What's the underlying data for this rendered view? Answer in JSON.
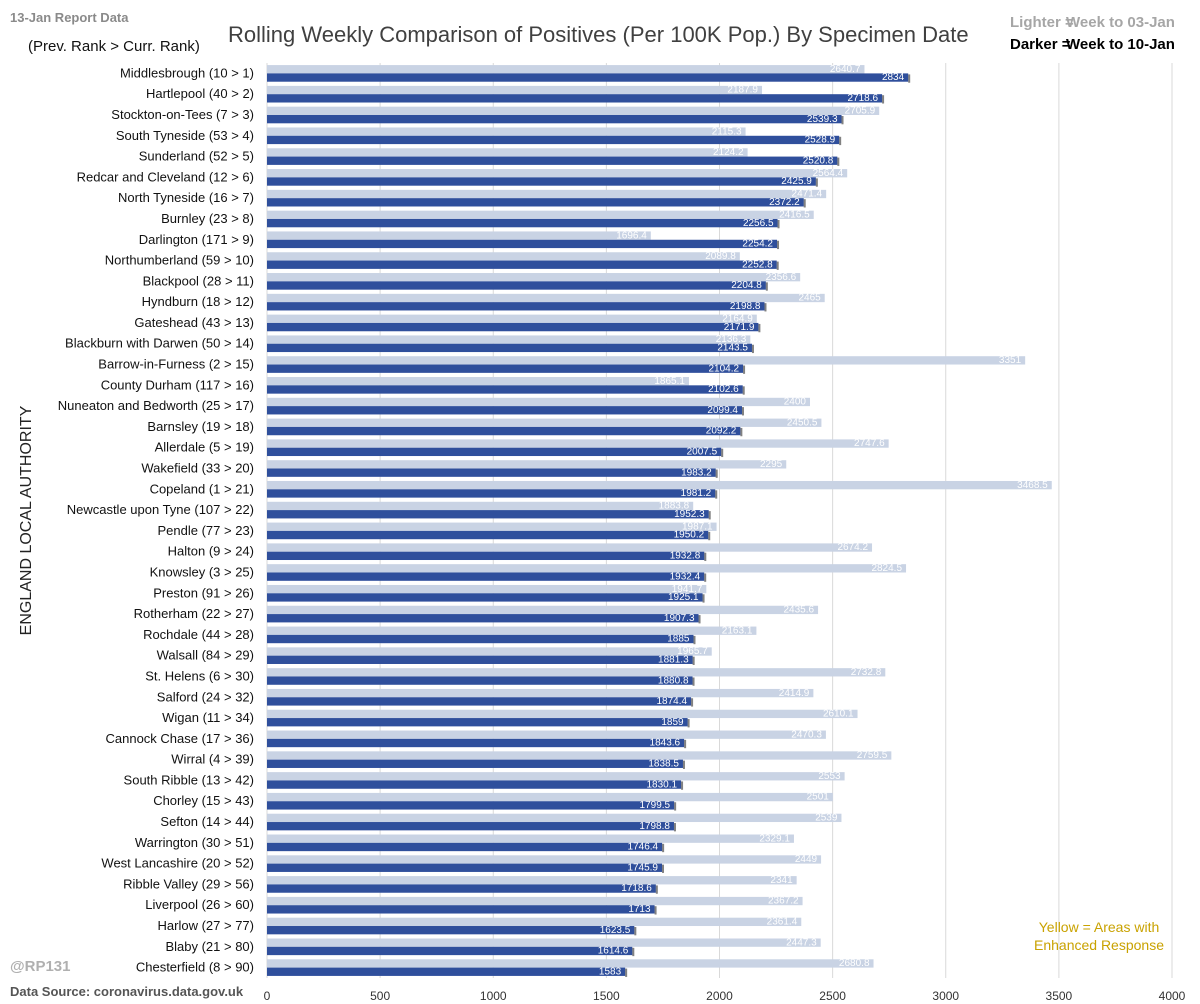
{
  "header": {
    "report_label": "13-Jan Report Data",
    "rank_note": "(Prev. Rank > Curr. Rank)",
    "title": "Rolling Weekly Comparison of Positives  (Per 100K Pop.) By Specimen Date",
    "legend_light_key": "Lighter =",
    "legend_light_value": "Week to 03-Jan",
    "legend_dark_key": "Darker =",
    "legend_dark_value": "Week to 10-Jan"
  },
  "footer": {
    "handle": "@RP131",
    "source": "Data Source: coronavirus.data.gov.uk",
    "yellow_note_line1": "Yellow = Areas with",
    "yellow_note_line2": "Enhanced Response"
  },
  "colors": {
    "prev_bar": "#c9d3e4",
    "curr_bar": "#2f4f9c",
    "grid": "#d9d9d9",
    "category_text": "#111111",
    "axis_text": "#333333"
  },
  "chart_data": {
    "type": "bar",
    "orientation": "horizontal",
    "ylabel": "ENGLAND LOCAL AUTHORITY",
    "xlabel": "",
    "xlim": [
      0,
      4000
    ],
    "x_ticks": [
      0,
      500,
      1000,
      1500,
      2000,
      2500,
      3000,
      3500,
      4000
    ],
    "grid": true,
    "categories": [
      "Middlesbrough (10 > 1)",
      "Hartlepool (40 > 2)",
      "Stockton-on-Tees (7 > 3)",
      "South Tyneside (53 > 4)",
      "Sunderland (52 > 5)",
      "Redcar and Cleveland (12 > 6)",
      "North Tyneside (16 > 7)",
      "Burnley (23 > 8)",
      "Darlington (171 > 9)",
      "Northumberland (59 > 10)",
      "Blackpool (28 > 11)",
      "Hyndburn (18 > 12)",
      "Gateshead (43 > 13)",
      "Blackburn with Darwen (50 > 14)",
      "Barrow-in-Furness (2 > 15)",
      "County Durham (117 > 16)",
      "Nuneaton and Bedworth (25 > 17)",
      "Barnsley (19 > 18)",
      "Allerdale (5 > 19)",
      "Wakefield (33 > 20)",
      "Copeland (1 > 21)",
      "Newcastle upon Tyne (107 > 22)",
      "Pendle (77 > 23)",
      "Halton (9 > 24)",
      "Knowsley (3 > 25)",
      "Preston (91 > 26)",
      "Rotherham (22 > 27)",
      "Rochdale (44 > 28)",
      "Walsall (84 > 29)",
      "St. Helens (6 > 30)",
      "Salford (24 > 32)",
      "Wigan (11 > 34)",
      "Cannock Chase (17 > 36)",
      "Wirral (4 > 39)",
      "South Ribble (13 > 42)",
      "Chorley (15 > 43)",
      "Sefton (14 > 44)",
      "Warrington (30 > 51)",
      "West Lancashire (20 > 52)",
      "Ribble Valley (29 > 56)",
      "Liverpool (26 > 60)",
      "Harlow (27 > 77)",
      "Blaby (21 > 80)",
      "Chesterfield (8 > 90)"
    ],
    "series": [
      {
        "name": "Week to 03-Jan",
        "values": [
          2640.7,
          2187.9,
          2705.9,
          2115.3,
          2124.2,
          2564.4,
          2471.4,
          2416.5,
          1696.4,
          2089.8,
          2356.6,
          2465,
          2164.9,
          2136.3,
          3351,
          1865.1,
          2400,
          2450.5,
          2747.6,
          2295,
          3468.5,
          1883.8,
          1987.1,
          2674.2,
          2824.5,
          1941.7,
          2435.6,
          2163.1,
          1965.7,
          2732.8,
          2414.9,
          2610.1,
          2470.3,
          2759.5,
          2553,
          2501,
          2539,
          2329.1,
          2449,
          2341,
          2367.2,
          2361.4,
          2447.3,
          2680.8
        ],
        "labels": [
          "2640.7",
          "2187.9",
          "2705.9",
          "2115.3",
          "2124.2",
          "2564.4",
          "2471.4",
          "2416.5",
          "1696.4",
          "2089.8",
          "2356.6",
          "2465",
          "2164.9",
          "2136.3",
          "3351",
          "1865.1",
          "2400",
          "2450.5",
          "2747.6",
          "2295",
          "3468.5",
          "1883.8",
          "1987.1",
          "2674.2",
          "2824.5",
          "1941.7",
          "2435.6",
          "2163.1",
          "1965.7",
          "2732.8",
          "2414.9",
          "2610.1",
          "2470.3",
          "2759.5",
          "2553",
          "2501",
          "2539",
          "2329.1",
          "2449",
          "2341",
          "2367.2",
          "2361.4",
          "2447.3",
          "2680.8"
        ]
      },
      {
        "name": "Week to 10-Jan",
        "values": [
          2834,
          2718.6,
          2539.3,
          2528.9,
          2520.8,
          2425.9,
          2372.2,
          2256.5,
          2254.2,
          2252.8,
          2204.8,
          2198.8,
          2171.9,
          2143.5,
          2104.2,
          2102.6,
          2099.4,
          2092.2,
          2007.5,
          1983.2,
          1981.2,
          1952.3,
          1950.2,
          1932.8,
          1932.4,
          1925.1,
          1907.3,
          1885,
          1881.3,
          1880.8,
          1874.4,
          1859,
          1843.6,
          1838.5,
          1830.1,
          1799.5,
          1798.8,
          1746.4,
          1745.9,
          1718.6,
          1713,
          1623.5,
          1614.6,
          1583
        ],
        "labels": [
          "2834",
          "2718.6",
          "2539.3",
          "2528.9",
          "2520.8",
          "2425.9",
          "2372.2",
          "2256.5",
          "2254.2",
          "2252.8",
          "2204.8",
          "2198.8",
          "2171.9",
          "2143.5",
          "2104.2",
          "2102.6",
          "2099.4",
          "2092.2",
          "2007.5",
          "1983.2",
          "1981.2",
          "1952.3",
          "1950.2",
          "1932.8",
          "1932.4",
          "1925.1",
          "1907.3",
          "1885",
          "1881.3",
          "1880.8",
          "1874.4",
          "1859",
          "1843.6",
          "1838.5",
          "1830.1",
          "1799.5",
          "1798.8",
          "1746.4",
          "1745.9",
          "1718.6",
          "1713",
          "1623.5",
          "1614.6",
          "1583"
        ]
      }
    ]
  }
}
